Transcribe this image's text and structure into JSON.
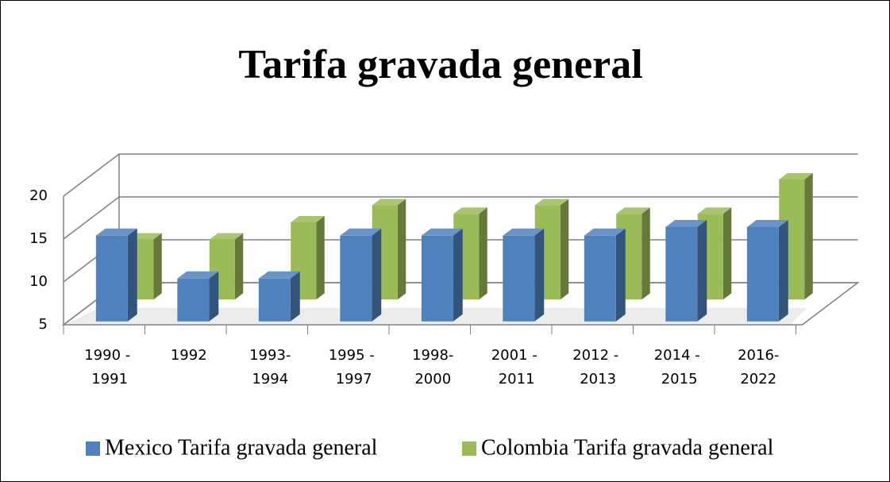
{
  "chart_data": {
    "type": "bar3d",
    "title": "Tarifa gravada general",
    "categories": [
      "1990 - 1991",
      "1992",
      "1993-1994",
      "1995 - 1997",
      "1998-2000",
      "2001 - 2011",
      "2012 - 2013",
      "2014 - 2015",
      "2016-2022"
    ],
    "series": [
      {
        "name": "Mexico Tarifa gravada general",
        "color": "#4f81bd",
        "values": [
          15,
          10,
          10,
          15,
          15,
          15,
          15,
          16,
          16
        ]
      },
      {
        "name": "Colombia Tarifa gravada general",
        "color": "#9bbb59",
        "values": [
          12,
          12,
          14,
          16,
          15,
          16,
          15,
          15,
          19
        ]
      }
    ],
    "ylim": [
      5,
      20
    ],
    "yticks": [
      5,
      10,
      15,
      20
    ],
    "grid": true,
    "legend": "bottom"
  }
}
